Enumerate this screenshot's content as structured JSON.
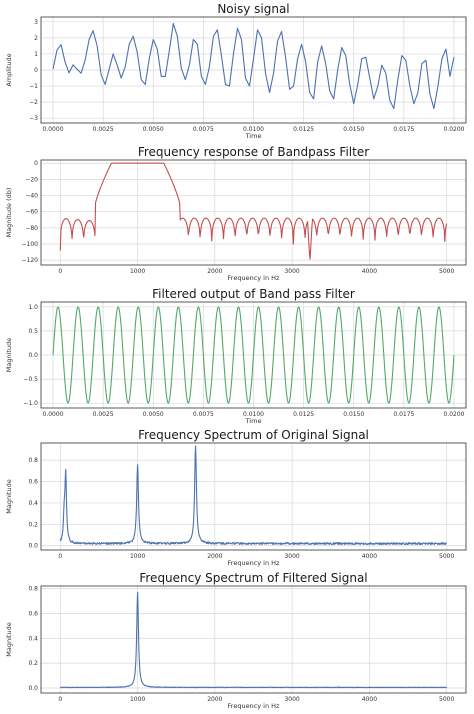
{
  "chart_data": [
    {
      "type": "line",
      "title": "Noisy signal",
      "xlabel": "Time",
      "ylabel": "Amplitude",
      "xlim": [
        -0.0006,
        0.0206
      ],
      "ylim": [
        -3.3,
        3.3
      ],
      "xticks": [
        0.0,
        0.0025,
        0.005,
        0.0075,
        0.01,
        0.0125,
        0.015,
        0.0175,
        0.02
      ],
      "xtick_labels": [
        "0.0000",
        "0.0025",
        "0.0050",
        "0.0075",
        "0.0100",
        "0.0125",
        "0.0150",
        "0.0175",
        "0.0200"
      ],
      "yticks": [
        -3,
        -2,
        -1,
        0,
        1,
        2,
        3
      ],
      "ytick_labels": [
        "−3",
        "−2",
        "−1",
        "0",
        "1",
        "2",
        "3"
      ],
      "grid": true,
      "color": "#4c72b0",
      "series": [
        {
          "x_start": 0.0,
          "x_step": 0.0002,
          "values": [
            0.05,
            1.25,
            1.58,
            0.5,
            -0.18,
            0.32,
            0.05,
            -0.2,
            0.6,
            1.9,
            2.45,
            1.5,
            -0.3,
            -0.9,
            0.05,
            1.0,
            0.3,
            -0.5,
            0.2,
            1.6,
            2.1,
            1.1,
            -0.6,
            -0.9,
            0.7,
            1.9,
            1.3,
            -0.4,
            -0.4,
            1.2,
            2.9,
            2.1,
            0.1,
            -0.6,
            0.3,
            1.9,
            1.6,
            -0.4,
            -0.9,
            0.2,
            2.1,
            2.5,
            0.9,
            -0.9,
            -1.0,
            1.0,
            2.6,
            1.9,
            -0.5,
            -1.0,
            0.7,
            2.5,
            2.0,
            -0.2,
            -1.4,
            -0.2,
            1.8,
            2.4,
            0.8,
            -1.2,
            -1.0,
            0.7,
            1.6,
            0.5,
            -1.4,
            -1.8,
            0.5,
            1.5,
            0.4,
            -1.3,
            -1.8,
            0.0,
            1.4,
            0.9,
            -0.9,
            -2.1,
            -0.9,
            0.7,
            0.8,
            -0.5,
            -1.8,
            -1.0,
            0.3,
            -0.2,
            -1.9,
            -2.4,
            -0.6,
            0.9,
            0.6,
            -1.0,
            -2.1,
            -1.4,
            0.4,
            0.6,
            -1.5,
            -2.4,
            -1.0,
            0.7,
            1.3,
            -0.4,
            0.8
          ]
        }
      ]
    },
    {
      "type": "line",
      "title": "Frequency response of Bandpass Filter",
      "xlabel": "Frequency in Hz",
      "ylabel": "Magnitude (db)",
      "xlim": [
        -250,
        5250
      ],
      "ylim": [
        -126,
        4
      ],
      "xticks": [
        0,
        1000,
        2000,
        3000,
        4000,
        5000
      ],
      "xtick_labels": [
        "0",
        "1000",
        "2000",
        "3000",
        "4000",
        "5000"
      ],
      "yticks": [
        -120,
        -100,
        -80,
        -60,
        -40,
        -20,
        0
      ],
      "ytick_labels": [
        "−120",
        "−100",
        "−80",
        "−60",
        "−40",
        "−20",
        "0"
      ],
      "grid": true,
      "color": "#c44e52",
      "passband": [
        600,
        1400
      ],
      "passband_db": 0,
      "stopband_db": -68,
      "first_lobe_db": -52
    },
    {
      "type": "line",
      "title": "Filtered output of Band pass Filter",
      "xlabel": "Time",
      "ylabel": "Magnitude",
      "xlim": [
        -0.0006,
        0.0206
      ],
      "ylim": [
        -1.1,
        1.1
      ],
      "xticks": [
        0.0,
        0.0025,
        0.005,
        0.0075,
        0.01,
        0.0125,
        0.015,
        0.0175,
        0.02
      ],
      "xtick_labels": [
        "0.0000",
        "0.0025",
        "0.0050",
        "0.0075",
        "0.0100",
        "0.0125",
        "0.0150",
        "0.0175",
        "0.0200"
      ],
      "yticks": [
        -1.0,
        -0.5,
        0.0,
        0.5,
        1.0
      ],
      "ytick_labels": [
        "−1.0",
        "−0.5",
        "0.0",
        "0.5",
        "1.0"
      ],
      "grid": true,
      "color": "#55a868",
      "frequency_hz": 1000,
      "amplitude": 1.0
    },
    {
      "type": "line",
      "title": "Frequency Spectrum of Original Signal",
      "xlabel": "Frequency in Hz",
      "ylabel": "Magnitude",
      "xlim": [
        -250,
        5250
      ],
      "ylim": [
        -0.04,
        0.96
      ],
      "xticks": [
        0,
        1000,
        2000,
        3000,
        4000,
        5000
      ],
      "xtick_labels": [
        "0",
        "1000",
        "2000",
        "3000",
        "4000",
        "5000"
      ],
      "yticks": [
        0.0,
        0.2,
        0.4,
        0.6,
        0.8
      ],
      "ytick_labels": [
        "0.0",
        "0.2",
        "0.4",
        "0.6",
        "0.8"
      ],
      "grid": true,
      "color": "#4c72b0",
      "peaks": [
        {
          "x": 50,
          "y": 0.25
        },
        {
          "x": 70,
          "y": 0.65
        },
        {
          "x": 1000,
          "y": 0.76
        },
        {
          "x": 1750,
          "y": 0.94
        }
      ],
      "noise_floor": 0.02
    },
    {
      "type": "line",
      "title": "Frequency Spectrum of Filtered Signal",
      "xlabel": "Frequency in Hz",
      "ylabel": "Magnitude",
      "xlim": [
        -250,
        5250
      ],
      "ylim": [
        -0.04,
        0.82
      ],
      "xticks": [
        0,
        1000,
        2000,
        3000,
        4000,
        5000
      ],
      "xtick_labels": [
        "0",
        "1000",
        "2000",
        "3000",
        "4000",
        "5000"
      ],
      "yticks": [
        0.0,
        0.2,
        0.4,
        0.6,
        0.8
      ],
      "ytick_labels": [
        "0.0",
        "0.2",
        "0.4",
        "0.6",
        "0.8"
      ],
      "grid": true,
      "color": "#4c72b0",
      "peaks": [
        {
          "x": 1000,
          "y": 0.77
        }
      ],
      "noise_floor": 0.005
    }
  ]
}
